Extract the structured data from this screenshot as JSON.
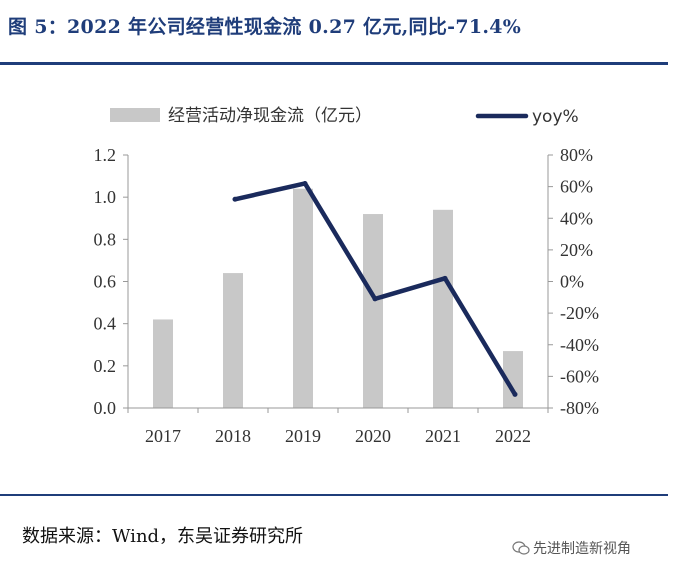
{
  "header": {
    "title": "图 5：2022 年公司经营性现金流 0.27 亿元,同比-71.4%"
  },
  "footer": {
    "source": "数据来源：Wind，东吴证券研究所",
    "watermark": "先进制造新视角"
  },
  "colors": {
    "title": "#1f3d7a",
    "bar": "#c8c8c8",
    "line": "#1a2a5c",
    "axis": "#999999"
  },
  "chart_data": {
    "type": "bar",
    "categories": [
      "2017",
      "2018",
      "2019",
      "2020",
      "2021",
      "2022"
    ],
    "series": [
      {
        "name": "经营活动净现金流（亿元）",
        "kind": "bar",
        "axis": "left",
        "values": [
          0.42,
          0.64,
          1.04,
          0.92,
          0.94,
          0.27
        ]
      },
      {
        "name": "yoy%",
        "kind": "line",
        "axis": "right",
        "values": [
          null,
          52,
          62,
          -11,
          2,
          -71.4
        ]
      }
    ],
    "left_axis": {
      "ylim": [
        0,
        1.2
      ],
      "ticks": [
        "0.0",
        "0.2",
        "0.4",
        "0.6",
        "0.8",
        "1.0",
        "1.2"
      ]
    },
    "right_axis": {
      "ylim": [
        -80,
        80
      ],
      "ticks": [
        "-80%",
        "-60%",
        "-40%",
        "-20%",
        "0%",
        "20%",
        "40%",
        "60%",
        "80%"
      ]
    },
    "legend_position": "top",
    "grid": false
  }
}
